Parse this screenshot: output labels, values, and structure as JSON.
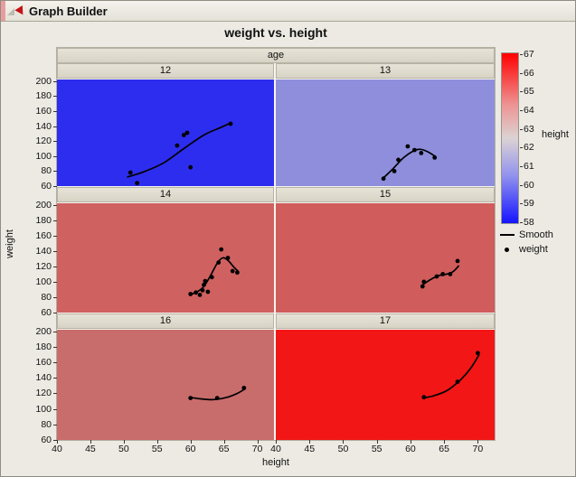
{
  "window": {
    "title": "Graph Builder"
  },
  "chart_data": {
    "type": "scatter",
    "title": "weight vs. height",
    "xlabel": "height",
    "ylabel": "weight",
    "facet": {
      "label": "age"
    },
    "x_ticks": [
      40,
      45,
      50,
      55,
      60,
      65,
      70
    ],
    "y_ticks": [
      200,
      180,
      160,
      140,
      120,
      100,
      80,
      60
    ],
    "x_domain": [
      40,
      72.5
    ],
    "y_domain": [
      60,
      202
    ],
    "grid": false,
    "legend": {
      "gradient_label": "height",
      "gradient_ticks": [
        67,
        66,
        65,
        64,
        63,
        62,
        61,
        60,
        59,
        58
      ],
      "gradient_top_color": "#ff0000",
      "gradient_bottom_color": "#1414ff",
      "items": [
        {
          "marker": "line",
          "label": "Smooth"
        },
        {
          "marker": "dot",
          "label": "weight"
        }
      ]
    },
    "panels": [
      {
        "label": "12",
        "bg": "#2d2def",
        "points": [
          [
            51,
            78
          ],
          [
            52,
            64
          ],
          [
            58,
            114
          ],
          [
            59,
            128
          ],
          [
            59.5,
            131
          ],
          [
            60,
            85
          ],
          [
            66,
            143
          ]
        ],
        "smooth": [
          [
            50.5,
            72
          ],
          [
            53,
            79
          ],
          [
            56,
            91
          ],
          [
            59,
            110
          ],
          [
            62,
            128
          ],
          [
            64.5,
            138
          ],
          [
            66,
            144
          ]
        ]
      },
      {
        "label": "13",
        "bg": "#8e8edd",
        "points": [
          [
            56,
            70
          ],
          [
            57.6,
            80
          ],
          [
            58.2,
            95
          ],
          [
            59.6,
            113
          ],
          [
            60.6,
            108
          ],
          [
            61.6,
            104
          ],
          [
            63.6,
            98
          ]
        ],
        "smooth": [
          [
            56,
            71
          ],
          [
            57.5,
            84
          ],
          [
            59,
            98
          ],
          [
            60.5,
            107
          ],
          [
            61.5,
            109
          ],
          [
            62.5,
            106
          ],
          [
            63.8,
            99
          ]
        ]
      },
      {
        "label": "14",
        "bg": "#d06161",
        "points": [
          [
            60,
            84
          ],
          [
            60.8,
            86
          ],
          [
            61.4,
            83
          ],
          [
            61.8,
            89
          ],
          [
            62,
            96
          ],
          [
            62.2,
            101
          ],
          [
            62.6,
            87
          ],
          [
            63.2,
            106
          ],
          [
            64.2,
            125
          ],
          [
            64.6,
            142
          ],
          [
            65.6,
            131
          ],
          [
            66.3,
            114
          ],
          [
            67,
            112
          ]
        ],
        "smooth": [
          [
            59.8,
            83
          ],
          [
            61,
            87
          ],
          [
            62,
            94
          ],
          [
            63,
            108
          ],
          [
            64,
            124
          ],
          [
            64.8,
            131
          ],
          [
            65.6,
            128
          ],
          [
            66.5,
            119
          ],
          [
            67.2,
            113
          ]
        ]
      },
      {
        "label": "15",
        "bg": "#d05c5c",
        "points": [
          [
            61.8,
            94
          ],
          [
            62,
            100
          ],
          [
            63.9,
            107
          ],
          [
            64.8,
            110
          ],
          [
            65.9,
            110
          ],
          [
            67,
            127
          ]
        ],
        "smooth": [
          [
            61.8,
            96
          ],
          [
            63,
            103
          ],
          [
            64.2,
            108
          ],
          [
            65.4,
            110
          ],
          [
            66.3,
            113
          ],
          [
            67.2,
            121
          ]
        ]
      },
      {
        "label": "16",
        "bg": "#c96c6c",
        "points": [
          [
            60,
            114
          ],
          [
            64,
            114
          ],
          [
            68,
            127
          ]
        ],
        "smooth": [
          [
            59.8,
            115
          ],
          [
            61.5,
            113
          ],
          [
            63.5,
            112
          ],
          [
            65.5,
            115
          ],
          [
            67,
            120
          ],
          [
            68.2,
            126
          ]
        ]
      },
      {
        "label": "17",
        "bg": "#f21616",
        "points": [
          [
            62,
            115
          ],
          [
            67,
            135
          ],
          [
            70,
            172
          ]
        ],
        "smooth": [
          [
            61.8,
            114
          ],
          [
            63.5,
            117
          ],
          [
            65.5,
            124
          ],
          [
            67.5,
            138
          ],
          [
            69,
            153
          ],
          [
            70.2,
            170
          ]
        ]
      }
    ]
  }
}
